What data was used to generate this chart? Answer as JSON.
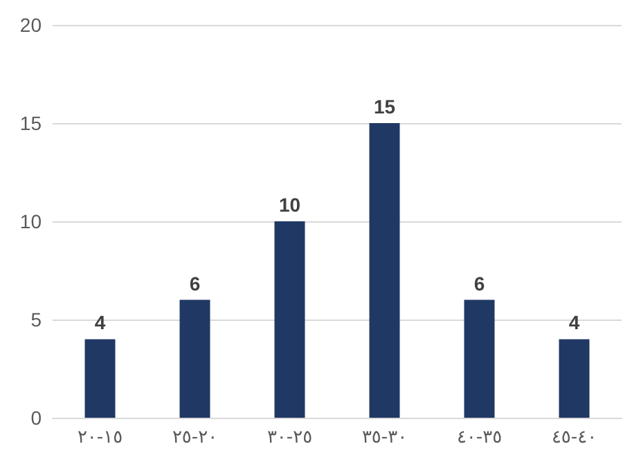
{
  "chart_data": {
    "type": "bar",
    "categories": [
      "١٥-٢٠",
      "٢٠-٢٥",
      "٢٥-٣٠",
      "٣٠-٣٥",
      "٣٥-٤٠",
      "٤٠-٤٥"
    ],
    "values": [
      4,
      6,
      10,
      15,
      6,
      4
    ],
    "color": "#203864",
    "ylim": [
      0,
      20
    ],
    "yticks": [
      0,
      5,
      10,
      15,
      20
    ],
    "grid": "y",
    "data_labels": true
  }
}
